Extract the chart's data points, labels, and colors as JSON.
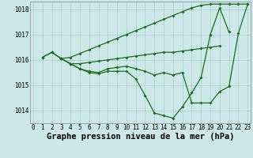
{
  "title": "Graphe pression niveau de la mer (hPa)",
  "background_color": "#cce8e8",
  "line_color": "#1a6e1a",
  "grid_color": "#aacccc",
  "ylim": [
    1013.5,
    1018.3
  ],
  "yticks": [
    1014,
    1015,
    1016,
    1017,
    1018
  ],
  "xlim": [
    -0.3,
    23.3
  ],
  "xticks": [
    0,
    1,
    2,
    3,
    4,
    5,
    6,
    7,
    8,
    9,
    10,
    11,
    12,
    13,
    14,
    15,
    16,
    17,
    18,
    19,
    20,
    21,
    22,
    23
  ],
  "x_labels": [
    "0",
    "1",
    "2",
    "3",
    "4",
    "5",
    "6",
    "7",
    "8",
    "9",
    "10",
    "11",
    "12",
    "13",
    "14",
    "15",
    "16",
    "17",
    "18",
    "19",
    "20",
    "21",
    "22",
    "23"
  ],
  "lineA_x": [
    1,
    2,
    3,
    4,
    5,
    6,
    7,
    8,
    9,
    10,
    11,
    12,
    13,
    14,
    15,
    16,
    17,
    18,
    19,
    20,
    21
  ],
  "lineA_y": [
    1016.1,
    1016.3,
    1016.05,
    1015.85,
    1015.65,
    1015.5,
    1015.45,
    1015.55,
    1015.55,
    1015.55,
    1015.25,
    1014.6,
    1013.9,
    1013.8,
    1013.7,
    1014.15,
    1014.7,
    1015.3,
    1017.0,
    1018.05,
    1017.1
  ],
  "lineB_x": [
    1,
    2,
    3,
    4,
    5,
    6,
    7,
    8,
    9,
    10,
    11,
    12,
    13,
    14,
    15,
    16,
    17,
    18,
    19,
    20,
    21,
    22,
    23
  ],
  "lineB_y": [
    1016.1,
    1016.3,
    1016.05,
    1015.85,
    1015.65,
    1015.55,
    1015.5,
    1015.65,
    1015.7,
    1015.75,
    1015.65,
    1015.55,
    1015.4,
    1015.5,
    1015.4,
    1015.5,
    1014.3,
    1014.3,
    1014.3,
    1014.75,
    1014.95,
    1017.05,
    1018.2
  ],
  "lineC_x": [
    3,
    4,
    5,
    6,
    7,
    8,
    9,
    10,
    11,
    12,
    13,
    14,
    15,
    16,
    17,
    18,
    19,
    20,
    21,
    22,
    23
  ],
  "lineC_y": [
    1016.05,
    1016.1,
    1016.25,
    1016.4,
    1016.55,
    1016.7,
    1016.85,
    1017.0,
    1017.15,
    1017.3,
    1017.45,
    1017.6,
    1017.75,
    1017.9,
    1018.05,
    1018.15,
    1018.2,
    1018.2,
    1018.2,
    1018.2,
    1018.2
  ],
  "lineD_x": [
    3,
    4,
    5,
    6,
    7,
    8,
    9,
    10,
    11,
    12,
    13,
    14,
    15,
    16,
    17,
    18,
    19,
    20
  ],
  "lineD_y": [
    1016.05,
    1015.85,
    1015.85,
    1015.9,
    1015.95,
    1016.0,
    1016.05,
    1016.1,
    1016.15,
    1016.2,
    1016.25,
    1016.3,
    1016.3,
    1016.35,
    1016.4,
    1016.45,
    1016.5,
    1016.55
  ],
  "marker": "D",
  "markersize": 2.0,
  "linewidth": 0.9,
  "title_fontsize": 7.5,
  "tick_fontsize": 5.5
}
